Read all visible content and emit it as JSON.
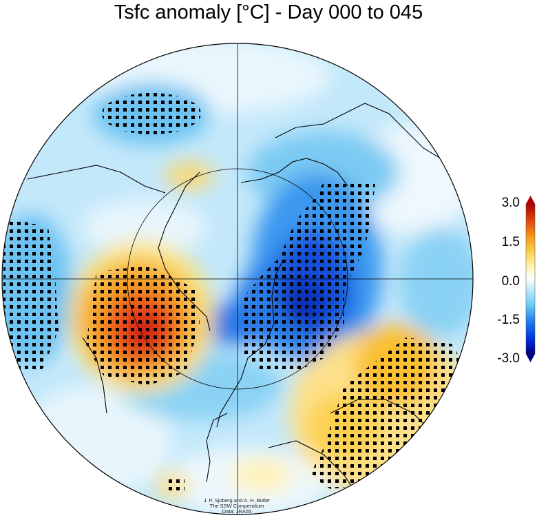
{
  "title": "Tsfc anomaly [°C] - Day 000 to 045",
  "colorbar": {
    "ticks": [
      "3.0",
      "1.5",
      "0.0",
      "-1.5",
      "-3.0"
    ],
    "colors": [
      "#000080",
      "#0020d8",
      "#1060f0",
      "#30a0f0",
      "#70d0f8",
      "#b8e8fb",
      "#e6f6fd",
      "#ffffff",
      "#fff6c0",
      "#fde080",
      "#fbc030",
      "#f39010",
      "#e65010",
      "#c81010",
      "#800000"
    ]
  },
  "credit": {
    "line1": "J. P. Sjoberg and A. H. Butler",
    "line2": "The SSW Compendium",
    "line3": "Data: JRA55"
  }
}
